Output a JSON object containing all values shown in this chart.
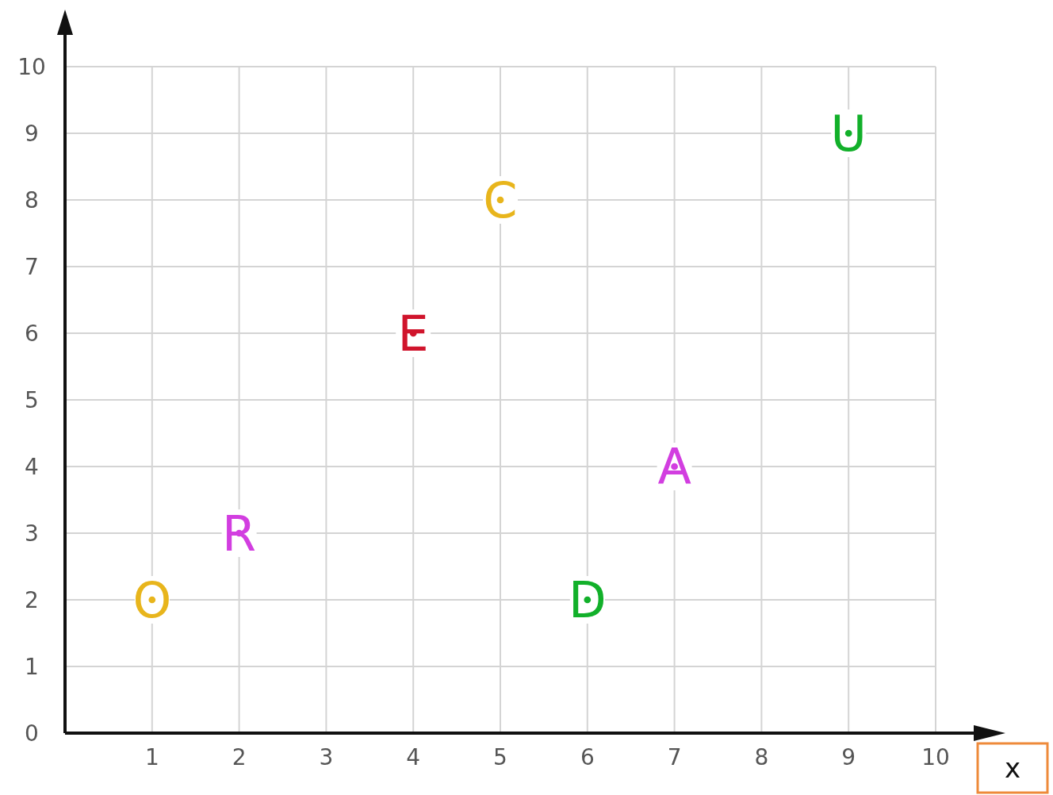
{
  "chart_data": {
    "type": "scatter",
    "xlabel": "x",
    "x": [
      1,
      2,
      4,
      5,
      6,
      7,
      9
    ],
    "values": [
      2,
      3,
      6,
      8,
      2,
      4,
      9
    ],
    "colors": [
      "#e8b51c",
      "#d23ee0",
      "#d0142c",
      "#e8b51c",
      "#12b02a",
      "#d23ee0",
      "#12b02a"
    ],
    "value_labels": [
      "O",
      "R",
      "E",
      "C",
      "D",
      "A",
      "U"
    ],
    "marker": "circle",
    "xlim": [
      0,
      10
    ],
    "xticks": [
      1,
      2,
      3,
      4,
      5,
      6,
      7,
      8,
      9,
      10
    ],
    "ylim": [
      0,
      10
    ],
    "yticks": [
      0,
      1,
      2,
      3,
      4,
      5,
      6,
      7,
      8,
      9,
      10
    ],
    "grid": true
  }
}
